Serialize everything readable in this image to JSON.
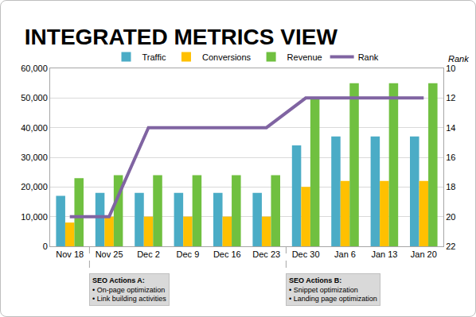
{
  "chart_data": {
    "type": "bar",
    "title": "INTEGRATED METRICS VIEW",
    "categories": [
      "Nov 18",
      "Nov 25",
      "Dec 2",
      "Dec 9",
      "Dec 16",
      "Dec 23",
      "Dec 30",
      "Jan 6",
      "Jan 13",
      "Jan 20"
    ],
    "series": [
      {
        "name": "Traffic",
        "color": "#4bacc6",
        "type": "bar",
        "values": [
          17000,
          18000,
          18000,
          18000,
          18000,
          18000,
          34000,
          37000,
          37000,
          37000
        ]
      },
      {
        "name": "Conversions",
        "color": "#ffc000",
        "type": "bar",
        "values": [
          8000,
          10000,
          10000,
          10000,
          10000,
          10000,
          20000,
          22000,
          22000,
          22000
        ]
      },
      {
        "name": "Revenue",
        "color": "#70c040",
        "type": "bar",
        "values": [
          23000,
          24000,
          24000,
          24000,
          24000,
          24000,
          50000,
          55000,
          55000,
          55000
        ]
      },
      {
        "name": "Rank",
        "color": "#8064a2",
        "type": "line",
        "axis": "y2",
        "values": [
          20,
          20,
          14,
          14,
          14,
          14,
          12,
          12,
          12,
          12
        ]
      }
    ],
    "ylim": [
      0,
      60000
    ],
    "yticks": [
      0,
      {
        "value": 10000,
        "label": "10,000"
      },
      {
        "value": 20000,
        "label": "20,000"
      },
      {
        "value": 30000,
        "label": "30,000"
      },
      {
        "value": 40000,
        "label": "40,000"
      },
      {
        "value": 50000,
        "label": "50,000"
      },
      {
        "value": 60000,
        "label": "60,000"
      }
    ],
    "y2_label": "Rank",
    "y2lim": [
      22,
      10
    ],
    "y2ticks": [
      10,
      12,
      14,
      16,
      18,
      20,
      22
    ],
    "grid": true,
    "legend": "top",
    "annotations": [
      {
        "x": "Nov 25",
        "title": "SEO Actions A:",
        "items": [
          "• On-page optimization",
          "• Link building activities"
        ]
      },
      {
        "x": "Dec 30",
        "title": "SEO Actions B:",
        "items": [
          "• Snippet optimization",
          "• Landing page optimization"
        ]
      }
    ]
  }
}
